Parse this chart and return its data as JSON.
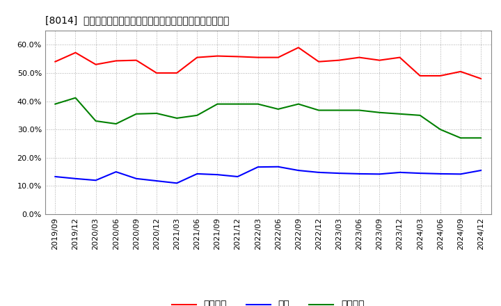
{
  "title": "[8014]  売上債権、在庫、買入債務の総資産に対する比率の推移",
  "x_labels": [
    "2019/09",
    "2019/12",
    "2020/03",
    "2020/06",
    "2020/09",
    "2020/12",
    "2021/03",
    "2021/06",
    "2021/09",
    "2021/12",
    "2022/03",
    "2022/06",
    "2022/09",
    "2022/12",
    "2023/03",
    "2023/06",
    "2023/09",
    "2023/12",
    "2024/03",
    "2024/06",
    "2024/09",
    "2024/12"
  ],
  "urikake": [
    0.54,
    0.572,
    0.53,
    0.543,
    0.545,
    0.5,
    0.5,
    0.555,
    0.56,
    0.558,
    0.555,
    0.555,
    0.59,
    0.54,
    0.545,
    0.555,
    0.545,
    0.555,
    0.49,
    0.49,
    0.505,
    0.48
  ],
  "zaiko": [
    0.133,
    0.126,
    0.12,
    0.15,
    0.126,
    0.118,
    0.11,
    0.143,
    0.14,
    0.133,
    0.167,
    0.168,
    0.155,
    0.148,
    0.145,
    0.143,
    0.142,
    0.148,
    0.145,
    0.143,
    0.142,
    0.155
  ],
  "kaiire": [
    0.39,
    0.412,
    0.33,
    0.32,
    0.355,
    0.357,
    0.34,
    0.35,
    0.39,
    0.39,
    0.39,
    0.372,
    0.39,
    0.368,
    0.368,
    0.368,
    0.36,
    0.355,
    0.35,
    0.3,
    0.27,
    0.27
  ],
  "urikake_color": "#ff0000",
  "zaiko_color": "#0000ff",
  "kaiire_color": "#008000",
  "ylim": [
    0.0,
    0.65
  ],
  "yticks": [
    0.0,
    0.1,
    0.2,
    0.3,
    0.4,
    0.5,
    0.6
  ],
  "legend_labels": [
    "売上債権",
    "在庫",
    "買入債務"
  ],
  "background_color": "#ffffff",
  "grid_color": "#aaaaaa"
}
